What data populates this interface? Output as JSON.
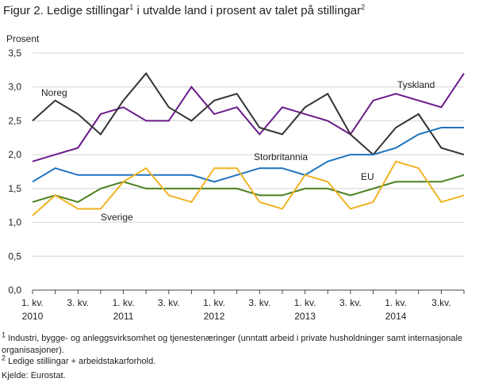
{
  "figure": {
    "title": "Figur 2. Ledige stillingar",
    "title_mark": "1",
    "title_rest": " i utvalde land i prosent av talet på stillingar",
    "title_mark2": "2",
    "footnote1_mark": "1",
    "footnote1": " Industri, bygge- og anleggsvirksomhet og tjenestenæringer (unntatt arbeid i private husholdninger samt internasjonale organisasjoner).",
    "footnote2_mark": "2",
    "footnote2": " Ledige stillingar + arbeidstakarforhold.",
    "source": "Kjelde: Eurostat."
  },
  "chart_data": {
    "type": "line",
    "ylabel": "Prosent",
    "ylim": [
      0,
      3.5
    ],
    "yticks": [
      "0,0",
      "0,5",
      "1,0",
      "1,5",
      "2,0",
      "2,5",
      "3,0",
      "3,5"
    ],
    "grid": true,
    "x": [
      "2010Q1",
      "2010Q2",
      "2010Q3",
      "2010Q4",
      "2011Q1",
      "2011Q2",
      "2011Q3",
      "2011Q4",
      "2012Q1",
      "2012Q2",
      "2012Q3",
      "2012Q4",
      "2013Q1",
      "2013Q2",
      "2013Q3",
      "2013Q4",
      "2014Q1",
      "2014Q2",
      "2014Q3",
      "2014Q4"
    ],
    "xtick_labels": [
      {
        "index": 0,
        "line1": "1. kv.",
        "line2": "2010"
      },
      {
        "index": 2,
        "line1": "3. kv.",
        "line2": ""
      },
      {
        "index": 4,
        "line1": "1. kv.",
        "line2": "2011"
      },
      {
        "index": 6,
        "line1": "3. kv.",
        "line2": ""
      },
      {
        "index": 8,
        "line1": "1. kv.",
        "line2": "2012"
      },
      {
        "index": 10,
        "line1": "3. kv.",
        "line2": ""
      },
      {
        "index": 12,
        "line1": "1. kv.",
        "line2": "2013"
      },
      {
        "index": 14,
        "line1": "3. kv.",
        "line2": ""
      },
      {
        "index": 16,
        "line1": "1. kv.",
        "line2": "2014"
      },
      {
        "index": 18,
        "line1": "3.kv.",
        "line2": ""
      }
    ],
    "series": [
      {
        "name": "Tyskland",
        "color": "#6a1b8a",
        "values": [
          1.9,
          2.0,
          2.1,
          2.6,
          2.7,
          2.5,
          2.5,
          3.0,
          2.6,
          2.7,
          2.3,
          2.7,
          2.6,
          2.5,
          2.3,
          2.8,
          2.9,
          2.8,
          2.7,
          3.2
        ]
      },
      {
        "name": "Noreg",
        "color": "#333333",
        "values": [
          2.5,
          2.8,
          2.6,
          2.3,
          2.8,
          3.2,
          2.7,
          2.5,
          2.8,
          2.9,
          2.4,
          2.3,
          2.7,
          2.9,
          2.3,
          2.0,
          2.4,
          2.6,
          2.1,
          2.0
        ]
      },
      {
        "name": "Storbritannia",
        "color": "#1e73be",
        "values": [
          1.6,
          1.8,
          1.7,
          1.7,
          1.7,
          1.7,
          1.7,
          1.7,
          1.6,
          1.7,
          1.8,
          1.8,
          1.7,
          1.9,
          2.0,
          2.0,
          2.1,
          2.3,
          2.4,
          2.4
        ]
      },
      {
        "name": "EU",
        "color": "#4a7f1e",
        "values": [
          1.3,
          1.4,
          1.3,
          1.5,
          1.6,
          1.5,
          1.5,
          1.5,
          1.5,
          1.5,
          1.4,
          1.4,
          1.5,
          1.5,
          1.4,
          1.5,
          1.6,
          1.6,
          1.6,
          1.7
        ]
      },
      {
        "name": "Sverige",
        "color": "#f0b323",
        "values": [
          1.1,
          1.4,
          1.2,
          1.2,
          1.6,
          1.8,
          1.4,
          1.3,
          1.8,
          1.8,
          1.3,
          1.2,
          1.7,
          1.6,
          1.2,
          1.3,
          1.9,
          1.8,
          1.3,
          1.4
        ]
      }
    ]
  }
}
